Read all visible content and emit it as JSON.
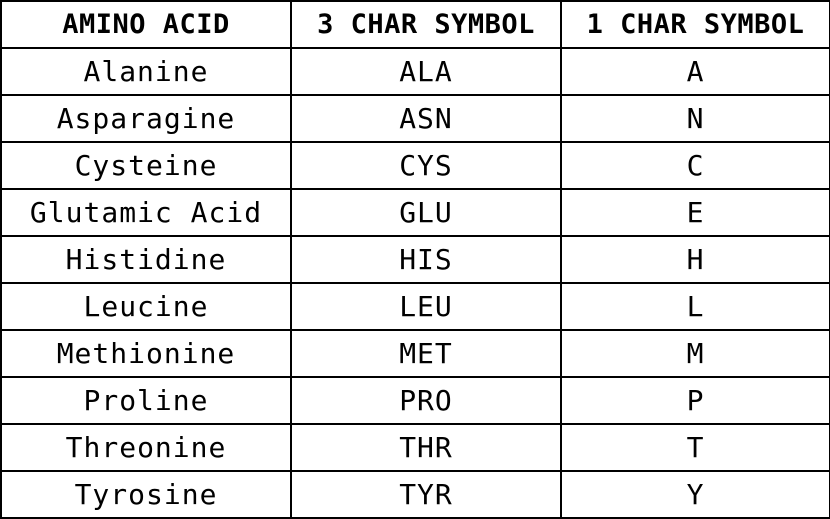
{
  "table": {
    "headers": [
      "AMINO ACID",
      "3 CHAR SYMBOL",
      "1 CHAR SYMBOL"
    ],
    "rows": [
      {
        "name": "Alanine",
        "three": "ALA",
        "one": "A"
      },
      {
        "name": "Asparagine",
        "three": "ASN",
        "one": "N"
      },
      {
        "name": "Cysteine",
        "three": "CYS",
        "one": "C"
      },
      {
        "name": "Glutamic Acid",
        "three": "GLU",
        "one": "E"
      },
      {
        "name": "Histidine",
        "three": "HIS",
        "one": "H"
      },
      {
        "name": "Leucine",
        "three": "LEU",
        "one": "L"
      },
      {
        "name": "Methionine",
        "three": "MET",
        "one": "M"
      },
      {
        "name": "Proline",
        "three": "PRO",
        "one": "P"
      },
      {
        "name": "Threonine",
        "three": "THR",
        "one": "T"
      },
      {
        "name": "Tyrosine",
        "three": "TYR",
        "one": "Y"
      }
    ]
  }
}
